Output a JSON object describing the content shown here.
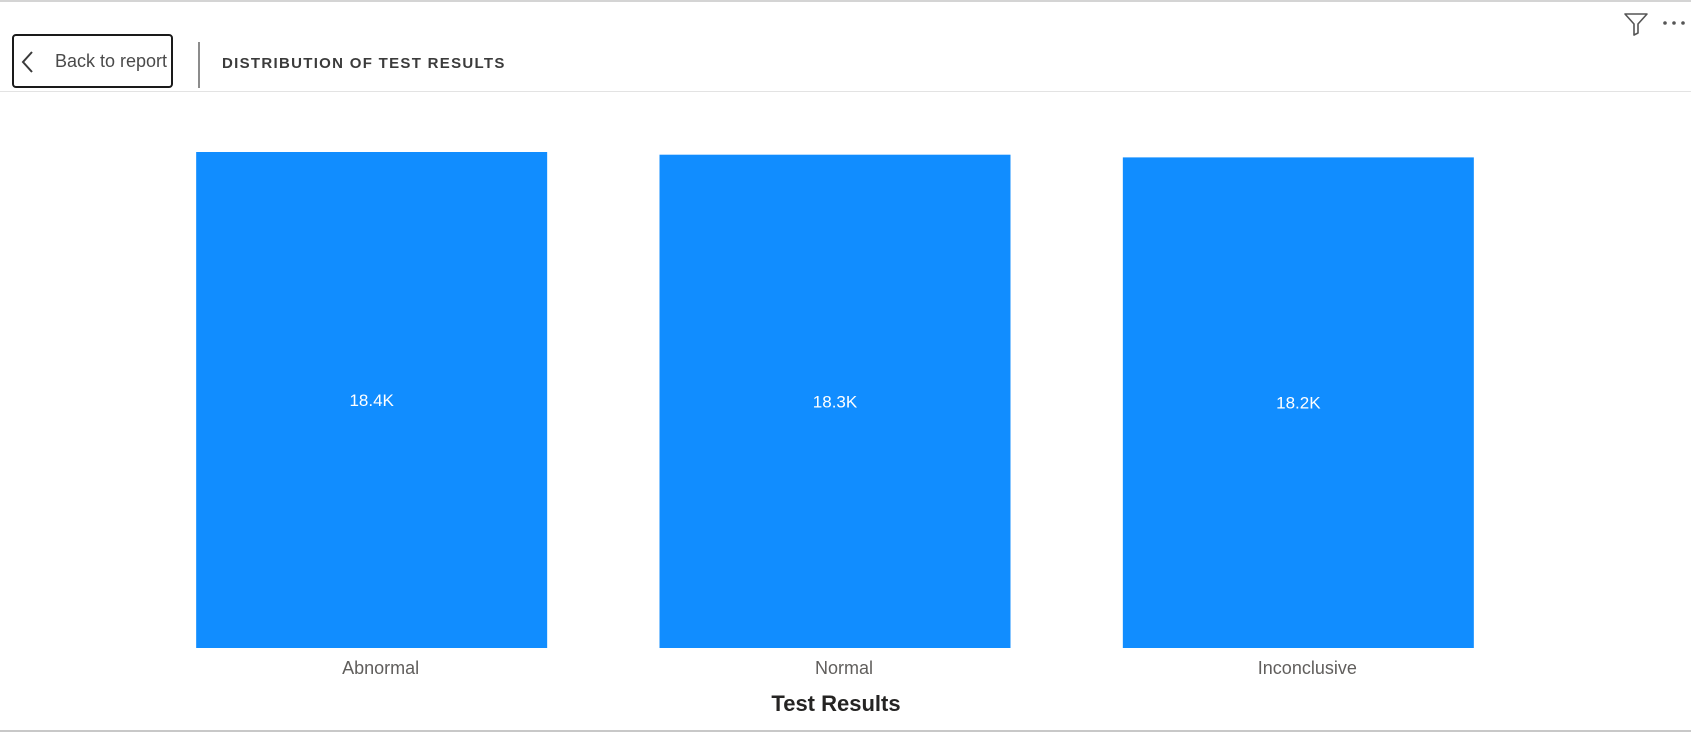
{
  "header": {
    "back_label": "Back to report",
    "title": "DISTRIBUTION OF TEST RESULTS"
  },
  "icons": {
    "back": "chevron-left-icon",
    "filter": "filter-icon",
    "more": "more-options-icon"
  },
  "colors": {
    "bar": "#118DFF",
    "bar_label": "#FFFFFF",
    "category_label": "#605E5C",
    "axis_title": "#252423"
  },
  "chart_data": {
    "type": "bar",
    "title": "",
    "xlabel": "Test Results",
    "ylabel": "",
    "categories": [
      "Abnormal",
      "Normal",
      "Inconclusive"
    ],
    "values": [
      18400,
      18300,
      18200
    ],
    "data_labels": [
      "18.4K",
      "18.3K",
      "18.2K"
    ],
    "ylim": [
      0,
      18400
    ],
    "grid": false,
    "legend": "none"
  }
}
